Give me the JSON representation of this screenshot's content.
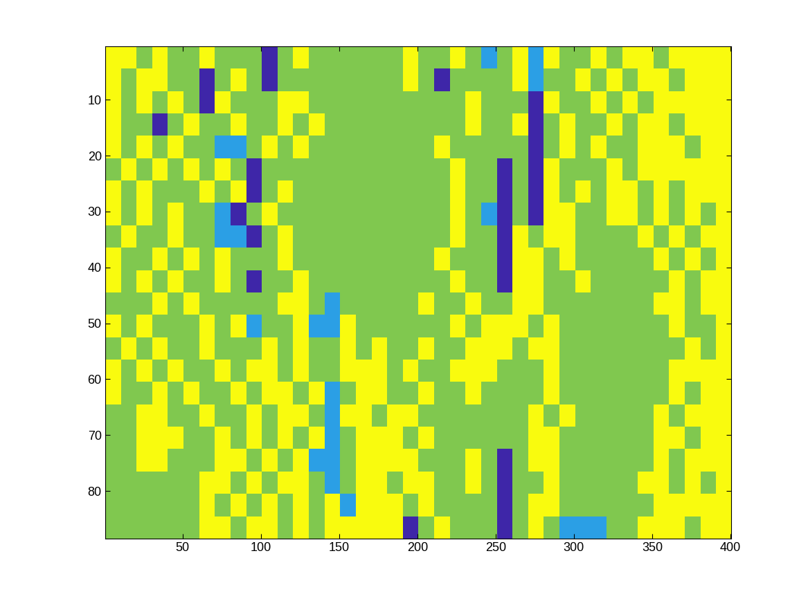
{
  "chart_data": {
    "type": "heatmap",
    "xlim": [
      0.5,
      400.5
    ],
    "ylim": [
      88.5,
      0.5
    ],
    "xticks": [
      50,
      100,
      150,
      200,
      250,
      300,
      350,
      400
    ],
    "yticks": [
      10,
      20,
      30,
      40,
      50,
      60,
      70,
      80
    ],
    "colors": [
      "#3e26a8",
      "#2b9fe5",
      "#80c84f",
      "#f9fb0e"
    ],
    "grid": false,
    "cells": [
      [
        4,
        4,
        3,
        4,
        3,
        3,
        4,
        3,
        3,
        3,
        1,
        3,
        4,
        3,
        3,
        3,
        3,
        3,
        3,
        4,
        3,
        3,
        4,
        3,
        2,
        3,
        4,
        2,
        4,
        3,
        3,
        4,
        3,
        4,
        4,
        3,
        4,
        4,
        4,
        4
      ],
      [
        4,
        3,
        4,
        4,
        3,
        3,
        1,
        3,
        4,
        3,
        1,
        3,
        3,
        3,
        3,
        3,
        3,
        3,
        3,
        4,
        3,
        1,
        3,
        3,
        3,
        3,
        4,
        2,
        3,
        3,
        4,
        3,
        4,
        3,
        4,
        4,
        3,
        4,
        4,
        4
      ],
      [
        4,
        3,
        4,
        3,
        4,
        3,
        1,
        4,
        3,
        3,
        3,
        4,
        4,
        3,
        3,
        3,
        3,
        3,
        3,
        3,
        3,
        3,
        3,
        4,
        3,
        3,
        3,
        1,
        4,
        3,
        3,
        4,
        3,
        4,
        3,
        4,
        4,
        4,
        4,
        4
      ],
      [
        4,
        3,
        3,
        1,
        3,
        4,
        3,
        3,
        4,
        3,
        3,
        4,
        3,
        4,
        3,
        3,
        3,
        3,
        3,
        3,
        3,
        3,
        3,
        4,
        3,
        3,
        4,
        1,
        3,
        4,
        3,
        3,
        4,
        3,
        4,
        4,
        3,
        4,
        4,
        4
      ],
      [
        4,
        3,
        4,
        3,
        4,
        3,
        3,
        2,
        2,
        3,
        4,
        3,
        4,
        3,
        3,
        3,
        3,
        3,
        3,
        3,
        3,
        4,
        3,
        3,
        3,
        3,
        3,
        1,
        3,
        4,
        3,
        4,
        3,
        3,
        4,
        4,
        4,
        3,
        4,
        4
      ],
      [
        3,
        4,
        3,
        4,
        3,
        4,
        3,
        4,
        3,
        1,
        3,
        3,
        3,
        3,
        3,
        3,
        3,
        3,
        3,
        3,
        3,
        3,
        4,
        3,
        3,
        1,
        3,
        1,
        4,
        3,
        3,
        3,
        4,
        3,
        4,
        4,
        4,
        4,
        4,
        4
      ],
      [
        4,
        3,
        4,
        3,
        3,
        3,
        4,
        3,
        4,
        1,
        3,
        4,
        3,
        3,
        3,
        3,
        3,
        3,
        3,
        3,
        3,
        3,
        4,
        3,
        3,
        1,
        3,
        1,
        4,
        3,
        4,
        3,
        4,
        4,
        3,
        4,
        3,
        4,
        4,
        4
      ],
      [
        4,
        3,
        4,
        3,
        4,
        3,
        3,
        2,
        1,
        3,
        4,
        3,
        3,
        3,
        3,
        3,
        3,
        3,
        3,
        3,
        3,
        3,
        4,
        3,
        2,
        1,
        3,
        1,
        4,
        4,
        3,
        3,
        4,
        4,
        3,
        4,
        3,
        4,
        3,
        4
      ],
      [
        3,
        4,
        3,
        3,
        4,
        3,
        3,
        2,
        2,
        1,
        3,
        4,
        3,
        3,
        3,
        3,
        3,
        3,
        3,
        3,
        3,
        3,
        4,
        3,
        3,
        1,
        4,
        3,
        4,
        4,
        3,
        3,
        3,
        3,
        4,
        3,
        4,
        3,
        4,
        4
      ],
      [
        4,
        3,
        3,
        4,
        3,
        4,
        3,
        4,
        3,
        3,
        3,
        4,
        3,
        3,
        3,
        3,
        3,
        3,
        3,
        3,
        3,
        4,
        3,
        3,
        3,
        1,
        4,
        4,
        3,
        4,
        3,
        3,
        3,
        3,
        3,
        4,
        3,
        4,
        3,
        4
      ],
      [
        4,
        3,
        4,
        3,
        4,
        3,
        3,
        4,
        3,
        1,
        3,
        3,
        4,
        3,
        3,
        3,
        3,
        3,
        3,
        3,
        3,
        3,
        4,
        3,
        3,
        1,
        4,
        4,
        3,
        3,
        4,
        3,
        3,
        3,
        3,
        3,
        4,
        3,
        4,
        4
      ],
      [
        3,
        3,
        3,
        4,
        3,
        4,
        3,
        3,
        3,
        3,
        3,
        4,
        4,
        3,
        2,
        3,
        3,
        3,
        3,
        3,
        4,
        3,
        3,
        4,
        3,
        3,
        4,
        4,
        3,
        3,
        3,
        3,
        3,
        3,
        3,
        4,
        4,
        3,
        4,
        4
      ],
      [
        4,
        3,
        4,
        3,
        3,
        3,
        4,
        3,
        4,
        2,
        3,
        3,
        4,
        2,
        2,
        4,
        3,
        3,
        3,
        3,
        3,
        3,
        4,
        3,
        4,
        4,
        4,
        3,
        4,
        3,
        3,
        3,
        3,
        3,
        3,
        3,
        4,
        3,
        3,
        4
      ],
      [
        3,
        4,
        3,
        4,
        3,
        3,
        4,
        3,
        3,
        3,
        4,
        3,
        4,
        3,
        3,
        4,
        3,
        4,
        3,
        3,
        4,
        3,
        3,
        4,
        4,
        4,
        3,
        4,
        4,
        3,
        3,
        3,
        3,
        3,
        3,
        3,
        3,
        4,
        3,
        4
      ],
      [
        4,
        3,
        4,
        3,
        4,
        3,
        3,
        4,
        3,
        4,
        4,
        3,
        4,
        3,
        3,
        4,
        4,
        4,
        3,
        4,
        3,
        3,
        4,
        4,
        4,
        3,
        3,
        3,
        4,
        3,
        3,
        3,
        3,
        3,
        3,
        3,
        4,
        4,
        4,
        4
      ],
      [
        4,
        3,
        3,
        4,
        3,
        4,
        3,
        3,
        4,
        3,
        4,
        4,
        3,
        4,
        2,
        3,
        4,
        4,
        3,
        3,
        4,
        3,
        3,
        4,
        3,
        3,
        3,
        3,
        4,
        3,
        3,
        3,
        3,
        3,
        3,
        3,
        4,
        3,
        4,
        4
      ],
      [
        3,
        3,
        4,
        4,
        3,
        3,
        4,
        3,
        3,
        4,
        3,
        4,
        4,
        3,
        2,
        4,
        4,
        3,
        4,
        4,
        3,
        3,
        3,
        3,
        3,
        3,
        3,
        4,
        3,
        4,
        3,
        3,
        3,
        3,
        3,
        4,
        3,
        4,
        4,
        4
      ],
      [
        3,
        3,
        4,
        4,
        4,
        3,
        3,
        4,
        3,
        4,
        3,
        4,
        3,
        4,
        2,
        3,
        4,
        4,
        4,
        3,
        4,
        3,
        3,
        3,
        3,
        3,
        3,
        4,
        4,
        3,
        3,
        3,
        3,
        3,
        3,
        4,
        4,
        3,
        4,
        4
      ],
      [
        3,
        3,
        4,
        4,
        3,
        3,
        3,
        4,
        4,
        3,
        4,
        3,
        4,
        2,
        2,
        3,
        4,
        4,
        4,
        4,
        3,
        3,
        3,
        4,
        3,
        1,
        3,
        4,
        4,
        3,
        3,
        3,
        3,
        3,
        3,
        4,
        3,
        4,
        4,
        4
      ],
      [
        3,
        3,
        3,
        3,
        3,
        3,
        4,
        4,
        3,
        4,
        3,
        4,
        4,
        3,
        2,
        3,
        4,
        4,
        3,
        4,
        4,
        3,
        3,
        4,
        3,
        1,
        3,
        3,
        4,
        3,
        3,
        3,
        3,
        3,
        4,
        4,
        3,
        4,
        3,
        4
      ],
      [
        3,
        3,
        3,
        3,
        3,
        3,
        4,
        3,
        4,
        3,
        4,
        3,
        4,
        3,
        4,
        2,
        4,
        4,
        4,
        3,
        4,
        3,
        3,
        3,
        3,
        1,
        3,
        4,
        4,
        3,
        3,
        3,
        3,
        3,
        3,
        4,
        4,
        4,
        4,
        4
      ],
      [
        3,
        3,
        3,
        3,
        3,
        3,
        4,
        4,
        3,
        4,
        4,
        3,
        4,
        3,
        4,
        4,
        4,
        4,
        4,
        1,
        3,
        4,
        3,
        3,
        3,
        1,
        3,
        4,
        3,
        2,
        2,
        2,
        3,
        3,
        4,
        4,
        4,
        3,
        4,
        4
      ]
    ]
  }
}
